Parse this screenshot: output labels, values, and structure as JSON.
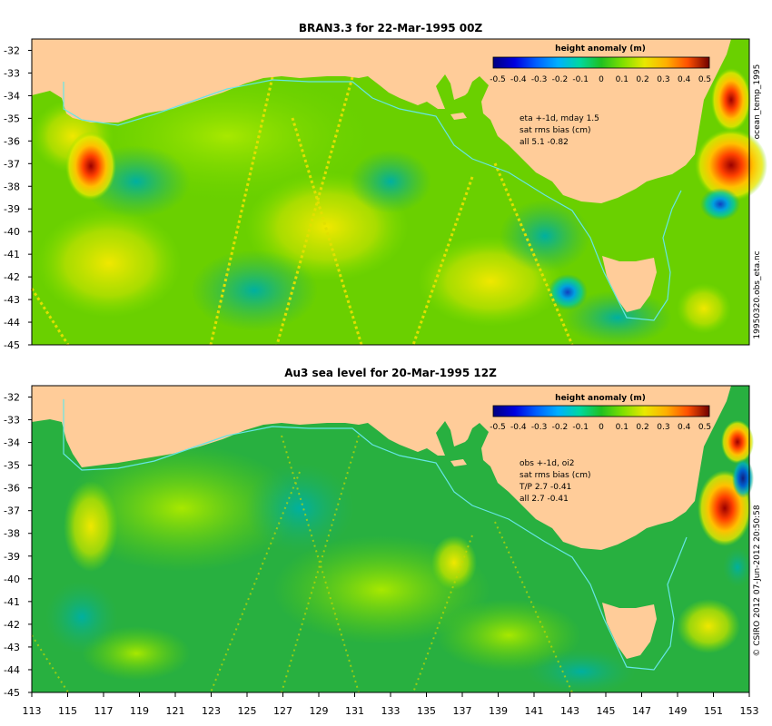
{
  "colors": {
    "background": "#ffffff",
    "land": "#ffcc99",
    "ocean_base": "#33b833",
    "coast_contour": "#66e6e6",
    "frame": "#000000"
  },
  "x_ticks": [
    "113",
    "115",
    "117",
    "119",
    "121",
    "123",
    "125",
    "127",
    "129",
    "131",
    "133",
    "135",
    "137",
    "139",
    "141",
    "143",
    "145",
    "147",
    "149",
    "151",
    "153"
  ],
  "y_ticks": [
    "-32",
    "-33",
    "-34",
    "-35",
    "-36",
    "-37",
    "-38",
    "-39",
    "-40",
    "-41",
    "-42",
    "-43",
    "-44",
    "-45"
  ],
  "colorbar": {
    "title": "height anomaly (m)",
    "ticks": [
      "-0.5",
      "-0.4",
      "-0.3",
      "-0.2",
      "-0.1",
      "0",
      "0.1",
      "0.2",
      "0.3",
      "0.4",
      "0.5"
    ],
    "colors": [
      "#000080",
      "#0000e0",
      "#0060ff",
      "#00b0ff",
      "#00d8a0",
      "#20c020",
      "#80e000",
      "#e8e800",
      "#ffb000",
      "#ff5000",
      "#c00000",
      "#700000"
    ]
  },
  "panels": [
    {
      "title": "BRAN3.3 for 22-Mar-1995 00Z",
      "annotation_lines": [
        "eta +-1d, mday 1.5",
        "sat rms bias (cm)",
        "all 5.1 -0.82"
      ],
      "side_text_top": "ocean_temp_1995",
      "side_text_bottom": "19950320.obs_eta.nc"
    },
    {
      "title": "Au3 sea level  for 20-Mar-1995 12Z",
      "annotation_lines": [
        "obs +-1d, oi2",
        "sat rms bias (cm)",
        "T/P  2.7 -0.41",
        "all 2.7 -0.41"
      ],
      "side_text_bottom": "© CSIRO 2012  07-Jun-2012 20:50:58"
    }
  ],
  "chart_data": [
    {
      "type": "heatmap",
      "title": "BRAN3.3 for 22-Mar-1995 00Z",
      "variable": "height anomaly (m)",
      "xlim": [
        113,
        153
      ],
      "ylim": [
        -45,
        -31.5
      ],
      "colorbar_range": [
        -0.5,
        0.5
      ],
      "features": [
        {
          "lon": 116.3,
          "lat": -37.0,
          "value": 0.35
        },
        {
          "lon": 152.5,
          "lat": -37.2,
          "value": 0.5
        },
        {
          "lon": 152.0,
          "lat": -34.5,
          "value": 0.3
        },
        {
          "lon": 151.8,
          "lat": -38.8,
          "value": -0.3
        },
        {
          "lon": 143.0,
          "lat": -43.5,
          "value": -0.2
        },
        {
          "lon": 128.0,
          "lat": -39.5,
          "value": 0.15
        }
      ],
      "stats": {
        "all_rms_cm": 5.1,
        "all_bias_cm": -0.82
      }
    },
    {
      "type": "heatmap",
      "title": "Au3 sea level  for 20-Mar-1995 12Z",
      "variable": "height anomaly (m)",
      "xlim": [
        113,
        153
      ],
      "ylim": [
        -45,
        -31.5
      ],
      "colorbar_range": [
        -0.5,
        0.5
      ],
      "features": [
        {
          "lon": 152.2,
          "lat": -37.0,
          "value": 0.45
        },
        {
          "lon": 152.5,
          "lat": -35.5,
          "value": -0.45
        },
        {
          "lon": 152.0,
          "lat": -34.0,
          "value": 0.3
        },
        {
          "lon": 117.0,
          "lat": -37.5,
          "value": 0.1
        },
        {
          "lon": 151.0,
          "lat": -42.5,
          "value": 0.2
        }
      ],
      "stats": {
        "tp_rms_cm": 2.7,
        "tp_bias_cm": -0.41,
        "all_rms_cm": 2.7,
        "all_bias_cm": -0.41
      }
    }
  ]
}
